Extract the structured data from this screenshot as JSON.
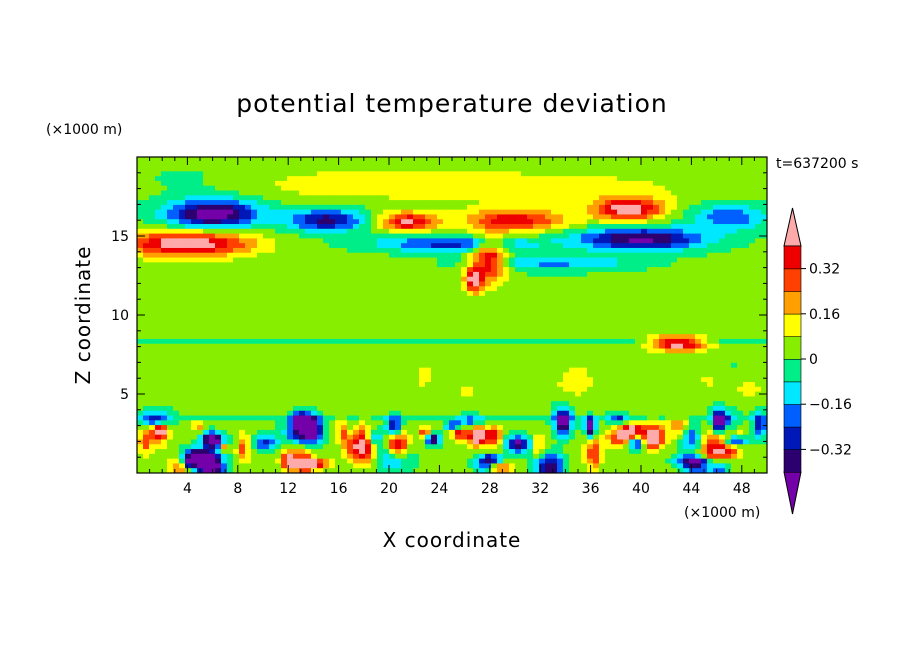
{
  "chart_data": {
    "type": "heatmap",
    "title": "potential temperature deviation",
    "xlabel": "X coordinate",
    "ylabel": "Z coordinate",
    "x_unit": "(×1000 m)",
    "y_unit": "(×1000 m)",
    "time_label": "t=637200 s",
    "xlim": [
      0,
      50
    ],
    "ylim": [
      0,
      20
    ],
    "x_ticks": [
      4,
      8,
      12,
      16,
      20,
      24,
      28,
      32,
      36,
      40,
      44,
      48
    ],
    "y_ticks": [
      5,
      10,
      15
    ],
    "colorbar": {
      "levels": [
        -0.48,
        -0.4,
        -0.32,
        -0.24,
        -0.16,
        -0.08,
        0,
        0.08,
        0.16,
        0.24,
        0.32,
        0.4
      ],
      "colors": [
        "#7300a8",
        "#2c006e",
        "#0018b8",
        "#0060ff",
        "#00e8ff",
        "#00ee88",
        "#88ee00",
        "#ffff00",
        "#ffa000",
        "#ff4000",
        "#ee0000",
        "#ffaaaa"
      ],
      "tick_values": [
        0.32,
        0.16,
        0,
        -0.16,
        -0.32
      ],
      "tick_labels": [
        "0.32",
        "0.16",
        "0",
        "−0.16",
        "−0.32"
      ],
      "extend": "both"
    }
  }
}
